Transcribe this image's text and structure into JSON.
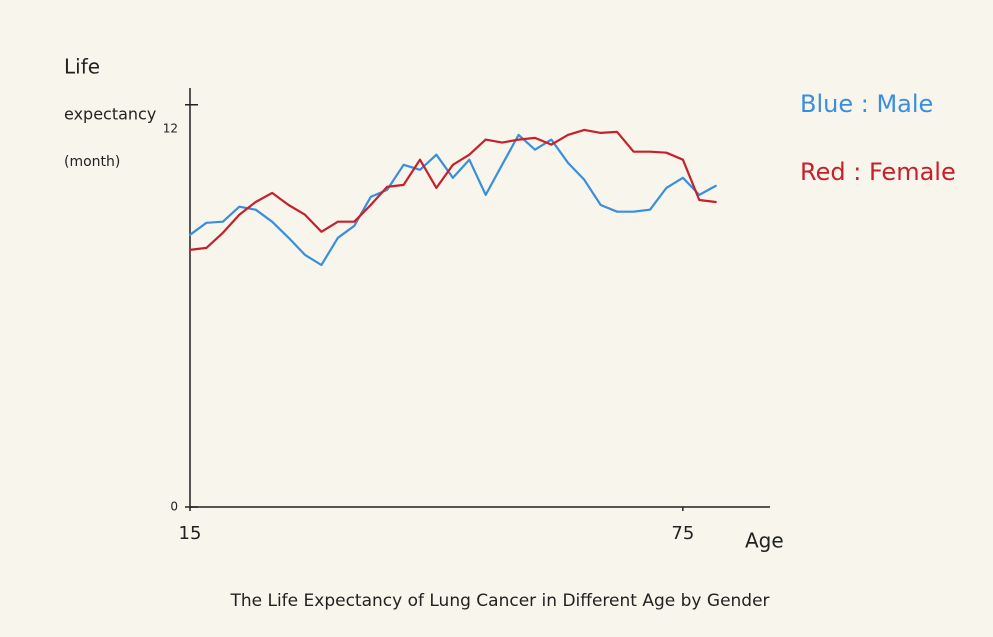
{
  "chart_data": {
    "type": "line",
    "title": "The Life Expectancy of Lung Cancer in Different Age by Gender",
    "ylabel": [
      "Life",
      "expectancy",
      "(month)"
    ],
    "xlabel": "Age",
    "x": [
      15,
      17,
      19,
      21,
      23,
      25,
      27,
      29,
      31,
      33,
      35,
      37,
      39,
      41,
      43,
      45,
      47,
      49,
      51,
      53,
      55,
      57,
      59,
      61,
      63,
      65,
      67,
      69,
      71,
      73,
      75,
      77,
      79
    ],
    "series": [
      {
        "name": "Blue : Male",
        "color": "#3a8fdc",
        "values": [
          8.12,
          8.48,
          8.51,
          8.96,
          8.87,
          8.51,
          8.03,
          7.52,
          7.22,
          8.03,
          8.39,
          9.25,
          9.46,
          10.21,
          10.06,
          10.51,
          9.82,
          10.36,
          9.31,
          10.21,
          11.1,
          10.66,
          10.96,
          10.27,
          9.76,
          9.01,
          8.81,
          8.81,
          8.87,
          9.52,
          9.82,
          9.31,
          9.58
        ]
      },
      {
        "name": "Red : Female",
        "color": "#c8202a",
        "values": [
          7.67,
          7.73,
          8.18,
          8.72,
          9.1,
          9.37,
          9.01,
          8.72,
          8.21,
          8.51,
          8.51,
          9.01,
          9.55,
          9.61,
          10.36,
          9.52,
          10.21,
          10.51,
          10.96,
          10.87,
          10.96,
          11.01,
          10.81,
          11.1,
          11.25,
          11.16,
          11.19,
          10.6,
          10.6,
          10.57,
          10.36,
          9.16,
          9.1
        ]
      }
    ],
    "xlim": [
      15,
      85
    ],
    "xticks": [
      15,
      75
    ],
    "ylim": [
      0,
      12.5
    ],
    "yticks": [
      0,
      12
    ],
    "grid": false,
    "legend": "top-right"
  }
}
